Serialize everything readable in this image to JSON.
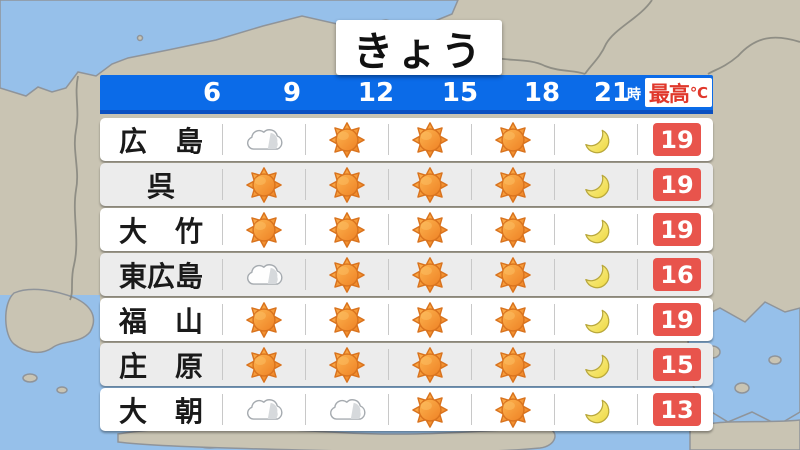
{
  "title": "きょう",
  "header": {
    "times": [
      "6",
      "9",
      "12",
      "15",
      "18",
      "21"
    ],
    "hour_suffix": "時",
    "max_temp_label": "最高",
    "degree_symbol": "℃"
  },
  "colors": {
    "header_blue": "#0B6BE8",
    "temp_red": "#E8544C",
    "sea": "#96C0EA",
    "land": "#C9C4B3"
  },
  "rows": [
    {
      "city": "広　島",
      "icons": [
        "cloudy",
        "sunny",
        "sunny",
        "sunny",
        "moon"
      ],
      "max_temp": "19"
    },
    {
      "city": "呉",
      "icons": [
        "sunny",
        "sunny",
        "sunny",
        "sunny",
        "moon"
      ],
      "max_temp": "19"
    },
    {
      "city": "大　竹",
      "icons": [
        "sunny",
        "sunny",
        "sunny",
        "sunny",
        "moon"
      ],
      "max_temp": "19"
    },
    {
      "city": "東広島",
      "icons": [
        "cloudy",
        "sunny",
        "sunny",
        "sunny",
        "moon"
      ],
      "max_temp": "16"
    },
    {
      "city": "福　山",
      "icons": [
        "sunny",
        "sunny",
        "sunny",
        "sunny",
        "moon"
      ],
      "max_temp": "19"
    },
    {
      "city": "庄　原",
      "icons": [
        "sunny",
        "sunny",
        "sunny",
        "sunny",
        "moon"
      ],
      "max_temp": "15"
    },
    {
      "city": "大　朝",
      "icons": [
        "cloudy",
        "cloudy",
        "sunny",
        "sunny",
        "moon"
      ],
      "max_temp": "13"
    }
  ]
}
